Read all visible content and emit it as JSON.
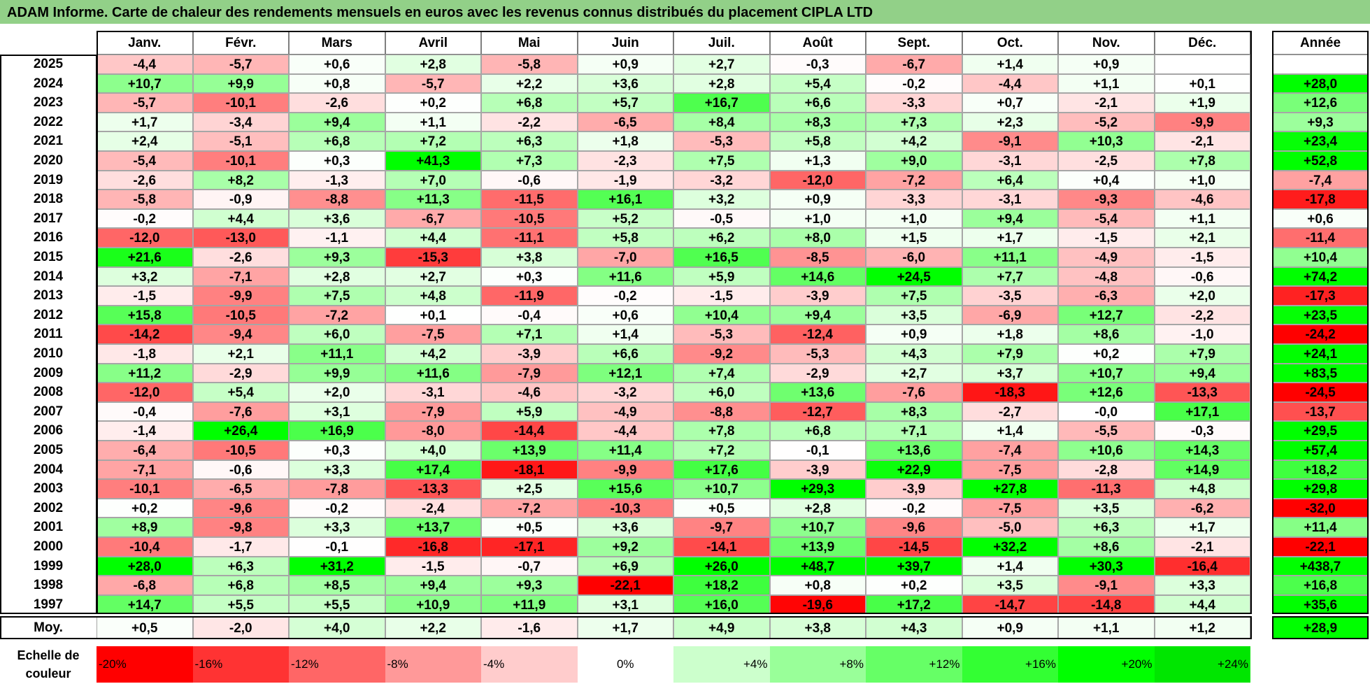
{
  "title": "ADAM Informe. Carte de chaleur des rendements mensuels en euros avec les revenus connus distribués du placement CIPLA LTD",
  "chart_data": {
    "type": "heatmap",
    "title": "ADAM Informe. Carte de chaleur des rendements mensuels en euros avec les revenus connus distribués du placement CIPLA LTD",
    "months": [
      "Janv.",
      "Févr.",
      "Mars",
      "Avril",
      "Mai",
      "Juin",
      "Juil.",
      "Août",
      "Sept.",
      "Oct.",
      "Nov.",
      "Déc."
    ],
    "year_header": "Année",
    "rows": [
      {
        "year": "2025",
        "values": [
          "-4,4",
          "-5,7",
          "+0,6",
          "+2,8",
          "-5,8",
          "+0,9",
          "+2,7",
          "-0,3",
          "-6,7",
          "+1,4",
          "+0,9",
          ""
        ],
        "annual": ""
      },
      {
        "year": "2024",
        "values": [
          "+10,7",
          "+9,9",
          "+0,8",
          "-5,7",
          "+2,2",
          "+3,6",
          "+2,8",
          "+5,4",
          "-0,2",
          "-4,4",
          "+1,1",
          "+0,1"
        ],
        "annual": "+28,0"
      },
      {
        "year": "2023",
        "values": [
          "-5,7",
          "-10,1",
          "-2,6",
          "+0,2",
          "+6,8",
          "+5,7",
          "+16,7",
          "+6,6",
          "-3,3",
          "+0,7",
          "-2,1",
          "+1,9"
        ],
        "annual": "+12,6"
      },
      {
        "year": "2022",
        "values": [
          "+1,7",
          "-3,4",
          "+9,4",
          "+1,1",
          "-2,2",
          "-6,5",
          "+8,4",
          "+8,3",
          "+7,3",
          "+2,3",
          "-5,2",
          "-9,9"
        ],
        "annual": "+9,3"
      },
      {
        "year": "2021",
        "values": [
          "+2,4",
          "-5,1",
          "+6,8",
          "+7,2",
          "+6,3",
          "+1,8",
          "-5,3",
          "+5,8",
          "+4,2",
          "-9,1",
          "+10,3",
          "-2,1"
        ],
        "annual": "+23,4"
      },
      {
        "year": "2020",
        "values": [
          "-5,4",
          "-10,1",
          "+0,3",
          "+41,3",
          "+7,3",
          "-2,3",
          "+7,5",
          "+1,3",
          "+9,0",
          "-3,1",
          "-2,5",
          "+7,8"
        ],
        "annual": "+52,8"
      },
      {
        "year": "2019",
        "values": [
          "-2,6",
          "+8,2",
          "-1,3",
          "+7,0",
          "-0,6",
          "-1,9",
          "-3,2",
          "-12,0",
          "-7,2",
          "+6,4",
          "+0,4",
          "+1,0"
        ],
        "annual": "-7,4"
      },
      {
        "year": "2018",
        "values": [
          "-5,8",
          "-0,9",
          "-8,8",
          "+11,3",
          "-11,5",
          "+16,1",
          "+3,2",
          "+0,9",
          "-3,3",
          "-3,1",
          "-9,3",
          "-4,6"
        ],
        "annual": "-17,8"
      },
      {
        "year": "2017",
        "values": [
          "-0,2",
          "+4,4",
          "+3,6",
          "-6,7",
          "-10,5",
          "+5,2",
          "-0,5",
          "+1,0",
          "+1,0",
          "+9,4",
          "-5,4",
          "+1,1"
        ],
        "annual": "+0,6"
      },
      {
        "year": "2016",
        "values": [
          "-12,0",
          "-13,0",
          "-1,1",
          "+4,4",
          "-11,1",
          "+5,8",
          "+6,2",
          "+8,0",
          "+1,5",
          "+1,7",
          "-1,5",
          "+2,1"
        ],
        "annual": "-11,4"
      },
      {
        "year": "2015",
        "values": [
          "+21,6",
          "-2,6",
          "+9,3",
          "-15,3",
          "+3,8",
          "-7,0",
          "+16,5",
          "-8,5",
          "-6,0",
          "+11,1",
          "-4,9",
          "-1,5"
        ],
        "annual": "+10,4"
      },
      {
        "year": "2014",
        "values": [
          "+3,2",
          "-7,1",
          "+2,8",
          "+2,7",
          "+0,3",
          "+11,6",
          "+5,9",
          "+14,6",
          "+24,5",
          "+7,7",
          "-4,8",
          "-0,6"
        ],
        "annual": "+74,2"
      },
      {
        "year": "2013",
        "values": [
          "-1,5",
          "-9,9",
          "+7,5",
          "+4,8",
          "-11,9",
          "-0,2",
          "-1,5",
          "-3,9",
          "+7,5",
          "-3,5",
          "-6,3",
          "+2,0"
        ],
        "annual": "-17,3"
      },
      {
        "year": "2012",
        "values": [
          "+15,8",
          "-10,5",
          "-7,2",
          "+0,1",
          "-0,4",
          "+0,6",
          "+10,4",
          "+9,4",
          "+3,5",
          "-6,9",
          "+12,7",
          "-2,2"
        ],
        "annual": "+23,5"
      },
      {
        "year": "2011",
        "values": [
          "-14,2",
          "-9,4",
          "+6,0",
          "-7,5",
          "+7,1",
          "+1,4",
          "-5,3",
          "-12,4",
          "+0,9",
          "+1,8",
          "+8,6",
          "-1,0"
        ],
        "annual": "-24,2"
      },
      {
        "year": "2010",
        "values": [
          "-1,8",
          "+2,1",
          "+11,1",
          "+4,2",
          "-3,9",
          "+6,6",
          "-9,2",
          "-5,3",
          "+4,3",
          "+7,9",
          "+0,2",
          "+7,9"
        ],
        "annual": "+24,1"
      },
      {
        "year": "2009",
        "values": [
          "+11,2",
          "-2,9",
          "+9,9",
          "+11,6",
          "-7,9",
          "+12,1",
          "+7,4",
          "-2,9",
          "+2,7",
          "+3,7",
          "+10,7",
          "+9,4"
        ],
        "annual": "+83,5"
      },
      {
        "year": "2008",
        "values": [
          "-12,0",
          "+5,4",
          "+2,0",
          "-3,1",
          "-4,6",
          "-3,2",
          "+6,0",
          "+13,6",
          "-7,6",
          "-18,3",
          "+12,6",
          "-13,3"
        ],
        "annual": "-24,5"
      },
      {
        "year": "2007",
        "values": [
          "-0,4",
          "-7,6",
          "+3,1",
          "-7,9",
          "+5,9",
          "-4,9",
          "-8,8",
          "-12,7",
          "+8,3",
          "-2,7",
          "-0,0",
          "+17,1"
        ],
        "annual": "-13,7"
      },
      {
        "year": "2006",
        "values": [
          "-1,4",
          "+26,4",
          "+16,9",
          "-8,0",
          "-14,4",
          "-4,4",
          "+7,8",
          "+6,8",
          "+7,1",
          "+1,4",
          "-5,5",
          "-0,3"
        ],
        "annual": "+29,5"
      },
      {
        "year": "2005",
        "values": [
          "-6,4",
          "-10,5",
          "+0,3",
          "+4,0",
          "+13,9",
          "+11,4",
          "+7,2",
          "-0,1",
          "+13,6",
          "-7,4",
          "+10,6",
          "+14,3"
        ],
        "annual": "+57,4"
      },
      {
        "year": "2004",
        "values": [
          "-7,1",
          "-0,6",
          "+3,3",
          "+17,4",
          "-18,1",
          "-9,9",
          "+17,6",
          "-3,9",
          "+22,9",
          "-7,5",
          "-2,8",
          "+14,9"
        ],
        "annual": "+18,2"
      },
      {
        "year": "2003",
        "values": [
          "-10,1",
          "-6,5",
          "-7,8",
          "-13,3",
          "+2,5",
          "+15,6",
          "+10,7",
          "+29,3",
          "-3,9",
          "+27,8",
          "-11,3",
          "+4,8"
        ],
        "annual": "+29,8"
      },
      {
        "year": "2002",
        "values": [
          "+0,2",
          "-9,6",
          "-0,2",
          "-2,4",
          "-7,2",
          "-10,3",
          "+0,5",
          "+2,8",
          "-0,2",
          "-7,5",
          "+3,5",
          "-6,2"
        ],
        "annual": "-32,0"
      },
      {
        "year": "2001",
        "values": [
          "+8,9",
          "-9,8",
          "+3,3",
          "+13,7",
          "+0,5",
          "+3,6",
          "-9,7",
          "+10,7",
          "-9,6",
          "-5,0",
          "+6,3",
          "+1,7"
        ],
        "annual": "+11,4"
      },
      {
        "year": "2000",
        "values": [
          "-10,4",
          "-1,7",
          "-0,1",
          "-16,8",
          "-17,1",
          "+9,2",
          "-14,1",
          "+13,9",
          "-14,5",
          "+32,2",
          "+8,6",
          "-2,1"
        ],
        "annual": "-22,1"
      },
      {
        "year": "1999",
        "values": [
          "+28,0",
          "+6,3",
          "+31,2",
          "-1,5",
          "-0,7",
          "+6,9",
          "+26,0",
          "+48,7",
          "+39,7",
          "+1,4",
          "+30,3",
          "-16,4"
        ],
        "annual": "+438,7"
      },
      {
        "year": "1998",
        "values": [
          "-6,8",
          "+6,8",
          "+8,5",
          "+9,4",
          "+9,3",
          "-22,1",
          "+18,2",
          "+0,8",
          "+0,2",
          "+3,5",
          "-9,1",
          "+3,3"
        ],
        "annual": "+16,8"
      },
      {
        "year": "1997",
        "values": [
          "+14,7",
          "+5,5",
          "+5,5",
          "+10,9",
          "+11,9",
          "+3,1",
          "+16,0",
          "-19,6",
          "+17,2",
          "-14,7",
          "-14,8",
          "+4,4"
        ],
        "annual": "+35,6"
      }
    ],
    "average": {
      "label": "Moy.",
      "values": [
        "+0,5",
        "-2,0",
        "+4,0",
        "+2,2",
        "-1,6",
        "+1,7",
        "+4,9",
        "+3,8",
        "+4,3",
        "+0,9",
        "+1,1",
        "+1,2"
      ],
      "annual": "+28,9"
    },
    "legend": {
      "label": "Echelle de couleur",
      "steps": [
        {
          "text": "-20%",
          "value": -20,
          "color": "#ff0000",
          "align": "left"
        },
        {
          "text": "-16%",
          "value": -16,
          "color": "#ff3333",
          "align": "left"
        },
        {
          "text": "-12%",
          "value": -12,
          "color": "#ff6666",
          "align": "left"
        },
        {
          "text": "-8%",
          "value": -8,
          "color": "#ff9999",
          "align": "left"
        },
        {
          "text": "-4%",
          "value": -4,
          "color": "#ffcccc",
          "align": "left"
        },
        {
          "text": "0%",
          "value": 0,
          "color": "#ffffff",
          "align": "center"
        },
        {
          "text": "+4%",
          "value": 4,
          "color": "#ccffcc",
          "align": "right"
        },
        {
          "text": "+8%",
          "value": 8,
          "color": "#99ff99",
          "align": "right"
        },
        {
          "text": "+12%",
          "value": 12,
          "color": "#66ff66",
          "align": "right"
        },
        {
          "text": "+16%",
          "value": 16,
          "color": "#33ff33",
          "align": "right"
        },
        {
          "text": "+20%",
          "value": 20,
          "color": "#00ff00",
          "align": "right"
        },
        {
          "text": "+24%",
          "value": 24,
          "color": "#00e600",
          "align": "right"
        }
      ]
    },
    "color_scale": {
      "negative": "#ff0000",
      "neutral": "#ffffff",
      "positive": "#00ff00",
      "negative_saturation": -20,
      "positive_saturation": 24
    }
  },
  "colors": {
    "title_bar": "#92d088",
    "gridline": "#a6a6a6",
    "frame": "#000000"
  }
}
